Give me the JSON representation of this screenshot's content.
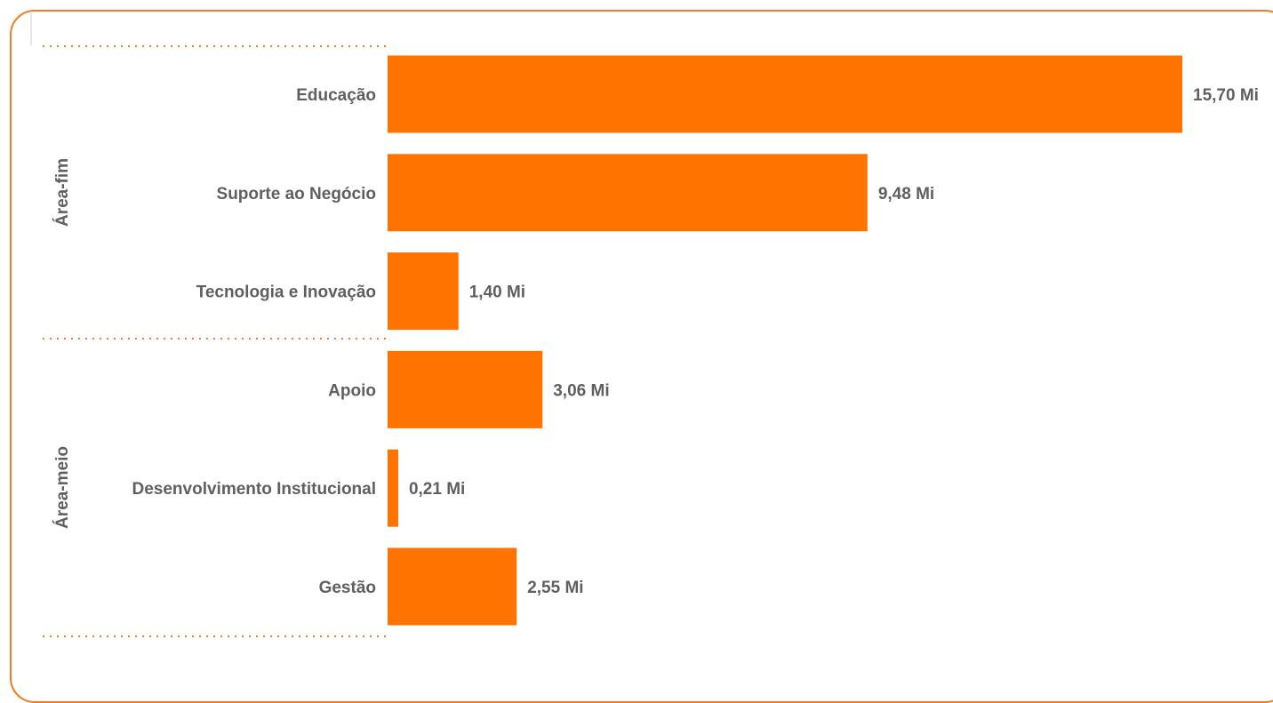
{
  "chart_data": {
    "type": "bar",
    "orientation": "horizontal",
    "groups": [
      {
        "name": "Área-fim",
        "categories": [
          "Educação",
          "Suporte ao Negócio",
          "Tecnologia e Inovação"
        ],
        "values": [
          15.7,
          9.48,
          1.4
        ],
        "value_labels": [
          "15,70 Mi",
          "9,48 Mi",
          "1,40 Mi"
        ]
      },
      {
        "name": "Área-meio",
        "categories": [
          "Apoio",
          "Desenvolvimento Institucional",
          "Gestão"
        ],
        "values": [
          3.06,
          0.21,
          2.55
        ],
        "value_labels": [
          "3,06 Mi",
          "0,21 Mi",
          "2,55 Mi"
        ]
      }
    ],
    "title": "",
    "xlabel": "",
    "ylabel": "",
    "xlim": [
      0,
      15.7
    ],
    "grid": false,
    "legend": "none",
    "colors": {
      "bar": "#ff7300",
      "border": "#f47b20",
      "text": "#5f5f5f"
    }
  }
}
